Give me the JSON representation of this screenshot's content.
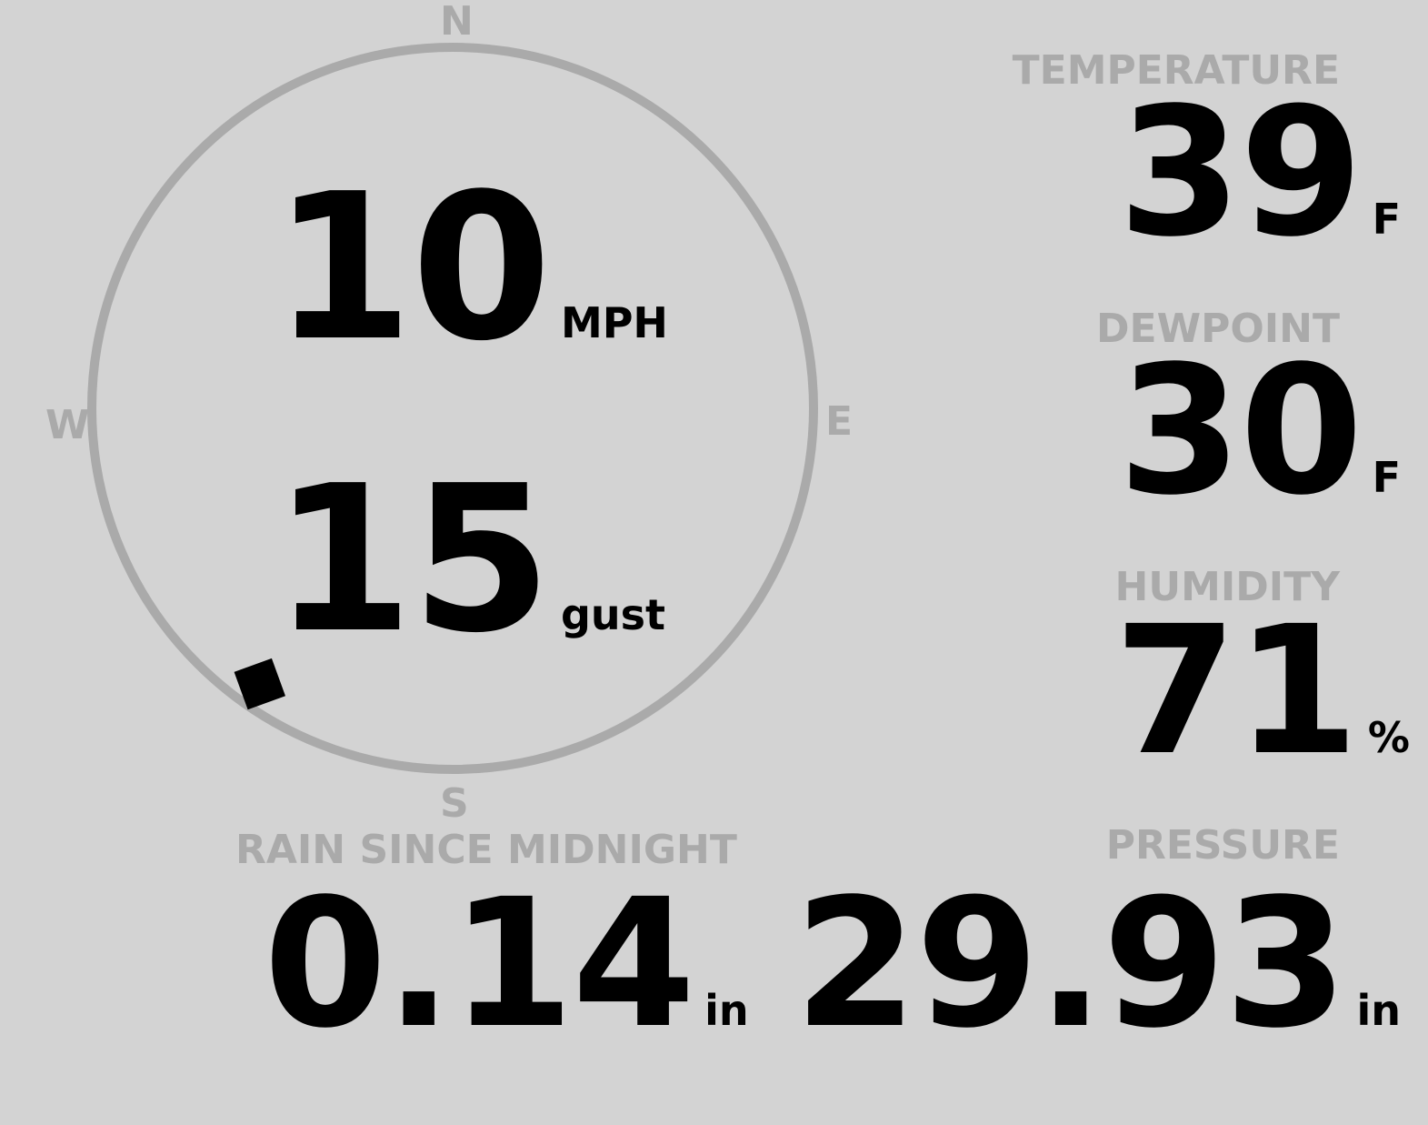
{
  "colors": {
    "background": "#d3d3d3",
    "label": "#aaaaaa",
    "value": "#000000"
  },
  "compass": {
    "north": "N",
    "east": "E",
    "south": "S",
    "west": "W",
    "wind_direction_deg": 215
  },
  "wind": {
    "speed": "10",
    "speed_unit": "MPH",
    "gust": "15",
    "gust_label": "gust"
  },
  "temperature": {
    "label": "TEMPERATURE",
    "value": "39",
    "unit": "F"
  },
  "dewpoint": {
    "label": "DEWPOINT",
    "value": "30",
    "unit": "F"
  },
  "humidity": {
    "label": "HUMIDITY",
    "value": "71",
    "unit": "%"
  },
  "rain": {
    "label": "RAIN SINCE MIDNIGHT",
    "value": "0.14",
    "unit": "in"
  },
  "pressure": {
    "label": "PRESSURE",
    "value": "29.93",
    "unit": "in"
  }
}
